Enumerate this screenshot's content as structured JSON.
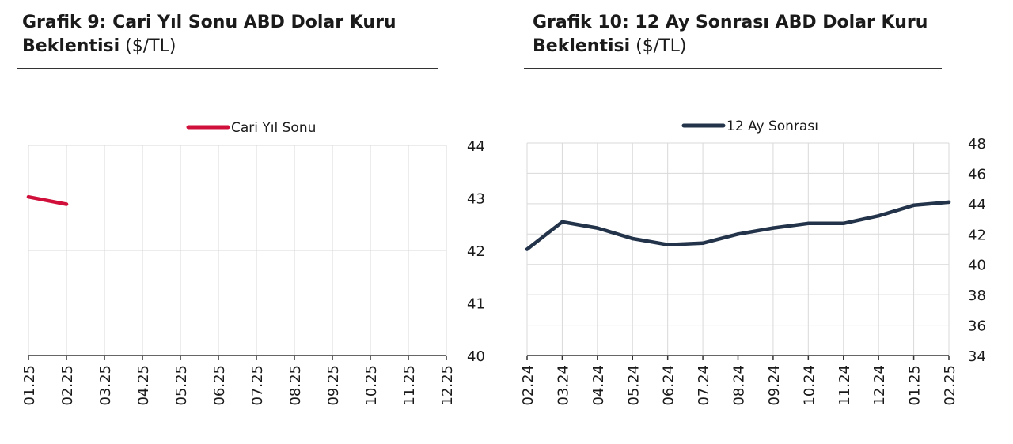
{
  "chart_data": [
    {
      "type": "line",
      "title": "Grafik 9: Cari Yıl Sonu ABD Dolar Kuru",
      "title_line2": "Beklentisi",
      "unit": "($/TL)",
      "categories": [
        "01.25",
        "02.25",
        "03.25",
        "04.25",
        "05.25",
        "06.25",
        "07.25",
        "08.25",
        "09.25",
        "10.25",
        "11.25",
        "12.25"
      ],
      "series": [
        {
          "name": "Cari Yıl Sonu",
          "color": "#d0103a",
          "values": [
            43.02,
            42.88,
            null,
            null,
            null,
            null,
            null,
            null,
            null,
            null,
            null,
            null
          ]
        }
      ],
      "ylim": [
        40,
        44
      ],
      "yticks": [
        40,
        41,
        42,
        43,
        44
      ],
      "y_axis_side": "right",
      "legend_position": "top-center",
      "grid": true
    },
    {
      "type": "line",
      "title": "Grafik 10: 12 Ay Sonrası ABD Dolar Kuru",
      "title_line2": "Beklentisi",
      "unit": "($/TL)",
      "categories": [
        "02.24",
        "03.24",
        "04.24",
        "05.24",
        "06.24",
        "07.24",
        "08.24",
        "09.24",
        "10.24",
        "11.24",
        "12.24",
        "01.25",
        "02.25"
      ],
      "series": [
        {
          "name": "12 Ay Sonrası",
          "color": "#22334a",
          "values": [
            41.0,
            42.8,
            42.4,
            41.7,
            41.3,
            41.4,
            42.0,
            42.4,
            42.7,
            42.7,
            43.2,
            43.9,
            44.1
          ]
        }
      ],
      "ylim": [
        34,
        48
      ],
      "yticks": [
        34,
        36,
        38,
        40,
        42,
        44,
        46,
        48
      ],
      "y_axis_side": "right",
      "legend_position": "top-center",
      "grid": true
    }
  ]
}
